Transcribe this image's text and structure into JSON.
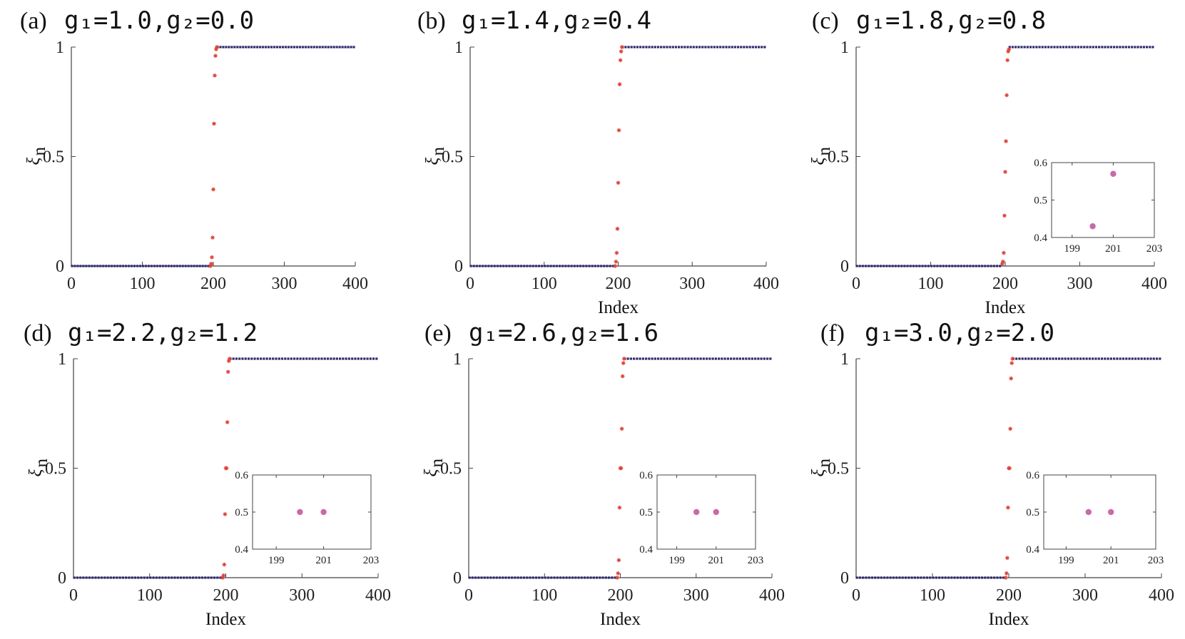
{
  "figure": {
    "colors": {
      "bulk_marker": "#2e2a6e",
      "edge_marker": "#e0453a",
      "inset_marker": "#c86aa8",
      "axis": "#444444"
    },
    "y_label_symbol": "ξ",
    "y_label_subscript": "n"
  },
  "chart_data": [
    {
      "type": "scatter",
      "panel": "(a)",
      "title_params": "g₁=1.0,g₂=0.0",
      "xlabel": "",
      "ylabel": "ξn",
      "xlim": [
        0,
        400
      ],
      "ylim": [
        0,
        1
      ],
      "x_ticks": [
        "0",
        "100",
        "200",
        "300",
        "400"
      ],
      "y_ticks": [
        "0",
        "0.5",
        "1"
      ],
      "series": [
        {
          "name": "bulk states",
          "x_range": [
            1,
            400
          ],
          "lower_plateau": {
            "x": [
              1,
              195
            ],
            "y": 0
          },
          "upper_plateau": {
            "x": [
              206,
              400
            ],
            "y": 1
          }
        },
        {
          "name": "edge states",
          "x": [
            196,
            197,
            198,
            199,
            200,
            201,
            202,
            203,
            204,
            205
          ],
          "y": [
            0.0,
            0.01,
            0.04,
            0.13,
            0.35,
            0.65,
            0.87,
            0.96,
            0.99,
            1.0
          ]
        }
      ],
      "inset": null
    },
    {
      "type": "scatter",
      "panel": "(b)",
      "title_params": "g₁=1.4,g₂=0.4",
      "xlabel": "Index",
      "ylabel": "ξn",
      "xlim": [
        0,
        400
      ],
      "ylim": [
        0,
        1
      ],
      "x_ticks": [
        "0",
        "100",
        "200",
        "300",
        "400"
      ],
      "y_ticks": [
        "0",
        "0.5",
        "1"
      ],
      "series": [
        {
          "name": "bulk states",
          "x_range": [
            1,
            400
          ],
          "lower_plateau": {
            "x": [
              1,
              195
            ],
            "y": 0
          },
          "upper_plateau": {
            "x": [
              206,
              400
            ],
            "y": 1
          }
        },
        {
          "name": "edge states",
          "x": [
            196,
            197,
            198,
            199,
            200,
            201,
            202,
            203,
            204,
            205
          ],
          "y": [
            0.0,
            0.02,
            0.06,
            0.17,
            0.38,
            0.62,
            0.83,
            0.94,
            0.98,
            1.0
          ]
        }
      ],
      "inset": null
    },
    {
      "type": "scatter",
      "panel": "(c)",
      "title_params": "g₁=1.8,g₂=0.8",
      "xlabel": "Index",
      "ylabel": "ξn",
      "xlim": [
        0,
        400
      ],
      "ylim": [
        0,
        1
      ],
      "x_ticks": [
        "0",
        "100",
        "200",
        "300",
        "400"
      ],
      "y_ticks": [
        "0",
        "0.5",
        "1"
      ],
      "series": [
        {
          "name": "bulk states",
          "x_range": [
            1,
            400
          ],
          "lower_plateau": {
            "x": [
              1,
              195
            ],
            "y": 0
          },
          "upper_plateau": {
            "x": [
              206,
              400
            ],
            "y": 1
          }
        },
        {
          "name": "edge states",
          "x": [
            196,
            197,
            198,
            199,
            200,
            201,
            202,
            203,
            204,
            205
          ],
          "y": [
            0.01,
            0.02,
            0.06,
            0.23,
            0.43,
            0.57,
            0.78,
            0.94,
            0.98,
            0.99
          ]
        }
      ],
      "inset": {
        "xlim": [
          198,
          203
        ],
        "ylim": [
          0.4,
          0.6
        ],
        "x_ticks": [
          "199",
          "201",
          "203"
        ],
        "y_ticks": [
          "0.4",
          "0.5",
          "0.6"
        ],
        "points": [
          {
            "x": 200,
            "y": 0.43
          },
          {
            "x": 201,
            "y": 0.57
          }
        ]
      }
    },
    {
      "type": "scatter",
      "panel": "(d)",
      "title_params": "g₁=2.2,g₂=1.2",
      "xlabel": "Index",
      "ylabel": "ξn",
      "xlim": [
        0,
        400
      ],
      "ylim": [
        0,
        1
      ],
      "x_ticks": [
        "0",
        "100",
        "200",
        "300",
        "400"
      ],
      "y_ticks": [
        "0",
        "0.5",
        "1"
      ],
      "series": [
        {
          "name": "bulk states",
          "x_range": [
            1,
            400
          ],
          "lower_plateau": {
            "x": [
              1,
              195
            ],
            "y": 0
          },
          "upper_plateau": {
            "x": [
              206,
              400
            ],
            "y": 1
          }
        },
        {
          "name": "edge states",
          "x": [
            196,
            197,
            198,
            199,
            200,
            201,
            202,
            203,
            204,
            205
          ],
          "y": [
            0.0,
            0.01,
            0.06,
            0.29,
            0.5,
            0.5,
            0.71,
            0.94,
            0.99,
            1.0
          ]
        }
      ],
      "inset": {
        "xlim": [
          198,
          203
        ],
        "ylim": [
          0.4,
          0.6
        ],
        "x_ticks": [
          "199",
          "201",
          "203"
        ],
        "y_ticks": [
          "0.4",
          "0.5",
          "0.6"
        ],
        "points": [
          {
            "x": 200,
            "y": 0.5
          },
          {
            "x": 201,
            "y": 0.5
          }
        ]
      }
    },
    {
      "type": "scatter",
      "panel": "(e)",
      "title_params": "g₁=2.6,g₂=1.6",
      "xlabel": "Index",
      "ylabel": "ξn",
      "xlim": [
        0,
        400
      ],
      "ylim": [
        0,
        1
      ],
      "x_ticks": [
        "0",
        "100",
        "200",
        "300",
        "400"
      ],
      "y_ticks": [
        "0",
        "0.5",
        "1"
      ],
      "series": [
        {
          "name": "bulk states",
          "x_range": [
            1,
            400
          ],
          "lower_plateau": {
            "x": [
              1,
              195
            ],
            "y": 0
          },
          "upper_plateau": {
            "x": [
              206,
              400
            ],
            "y": 1
          }
        },
        {
          "name": "edge states",
          "x": [
            196,
            197,
            198,
            199,
            200,
            201,
            202,
            203,
            204,
            205
          ],
          "y": [
            0.0,
            0.02,
            0.08,
            0.32,
            0.5,
            0.5,
            0.68,
            0.92,
            0.98,
            1.0
          ]
        }
      ],
      "inset": {
        "xlim": [
          198,
          203
        ],
        "ylim": [
          0.4,
          0.6
        ],
        "x_ticks": [
          "199",
          "201",
          "203"
        ],
        "y_ticks": [
          "0.4",
          "0.5",
          "0.6"
        ],
        "points": [
          {
            "x": 200,
            "y": 0.5
          },
          {
            "x": 201,
            "y": 0.5
          }
        ]
      }
    },
    {
      "type": "scatter",
      "panel": "(f)",
      "title_params": "g₁=3.0,g₂=2.0",
      "xlabel": "Index",
      "ylabel": "ξn",
      "xlim": [
        0,
        400
      ],
      "ylim": [
        0,
        1
      ],
      "x_ticks": [
        "0",
        "100",
        "200",
        "300",
        "400"
      ],
      "y_ticks": [
        "0",
        "0.5",
        "1"
      ],
      "series": [
        {
          "name": "bulk states",
          "x_range": [
            1,
            400
          ],
          "lower_plateau": {
            "x": [
              1,
              195
            ],
            "y": 0
          },
          "upper_plateau": {
            "x": [
              206,
              400
            ],
            "y": 1
          }
        },
        {
          "name": "edge states",
          "x": [
            196,
            197,
            198,
            199,
            200,
            201,
            202,
            203,
            204,
            205
          ],
          "y": [
            0.0,
            0.02,
            0.09,
            0.32,
            0.5,
            0.5,
            0.68,
            0.91,
            0.98,
            1.0
          ]
        }
      ],
      "inset": {
        "xlim": [
          198,
          203
        ],
        "ylim": [
          0.4,
          0.6
        ],
        "x_ticks": [
          "199",
          "201",
          "203"
        ],
        "y_ticks": [
          "0.4",
          "0.5",
          "0.6"
        ],
        "points": [
          {
            "x": 200,
            "y": 0.5
          },
          {
            "x": 201,
            "y": 0.5
          }
        ]
      }
    }
  ]
}
